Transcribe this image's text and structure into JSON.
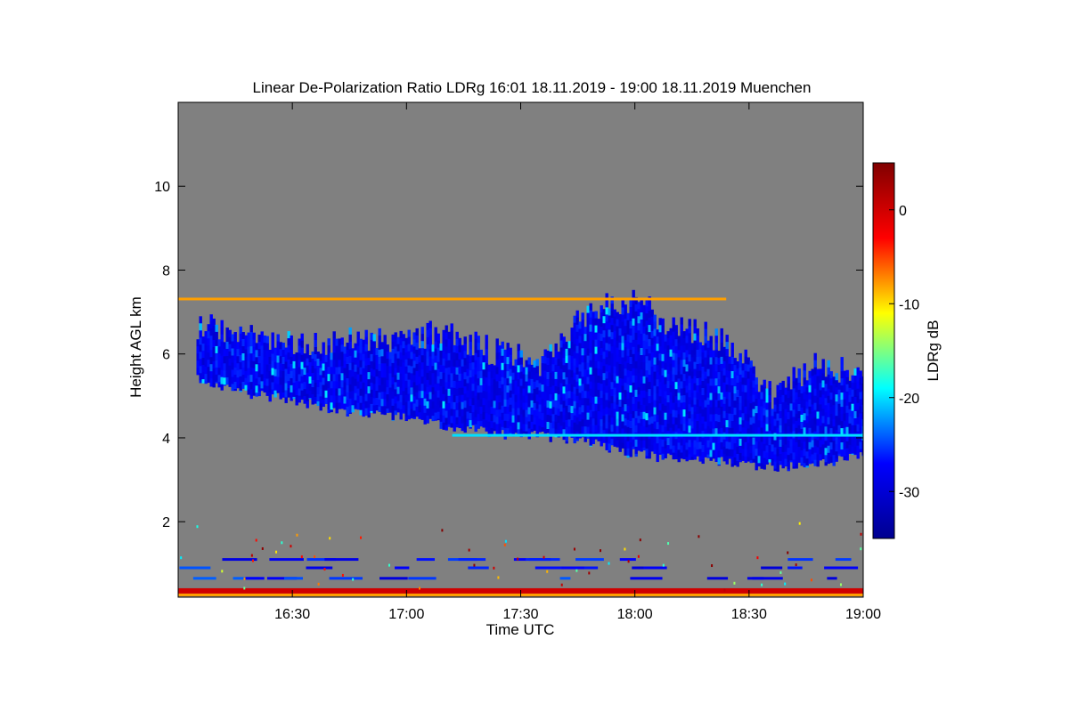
{
  "chart_data": {
    "type": "heatmap",
    "title": "Linear De-Polarization Ratio LDRg   16:01 18.11.2019 - 19:00 18.11.2019 Muenchen",
    "xlabel": "Time UTC",
    "ylabel": "Height AGL km",
    "colorbar_label": "LDRg dB",
    "xlim": [
      16.0,
      19.0
    ],
    "ylim": [
      0.2,
      12.0
    ],
    "x_ticks": [
      {
        "value": 16.5,
        "label": "16:30"
      },
      {
        "value": 17.0,
        "label": "17:00"
      },
      {
        "value": 17.5,
        "label": "17:30"
      },
      {
        "value": 18.0,
        "label": "18:00"
      },
      {
        "value": 18.5,
        "label": "18:30"
      },
      {
        "value": 19.0,
        "label": "19:00"
      }
    ],
    "y_ticks": [
      {
        "value": 2,
        "label": "2"
      },
      {
        "value": 4,
        "label": "4"
      },
      {
        "value": 6,
        "label": "6"
      },
      {
        "value": 8,
        "label": "8"
      },
      {
        "value": 10,
        "label": "10"
      }
    ],
    "clim": [
      -35,
      5
    ],
    "colorbar_ticks": [
      {
        "value": 0,
        "label": "0"
      },
      {
        "value": -10,
        "label": "-10"
      },
      {
        "value": -20,
        "label": "-20"
      },
      {
        "value": -30,
        "label": "-30"
      }
    ],
    "colormap": [
      "#00008f",
      "#0000ff",
      "#00ffff",
      "#ffff00",
      "#ff0000",
      "#800000"
    ],
    "background_color": "#808080",
    "cloud_layer": {
      "ldr_db_typical": -28,
      "time": [
        16.08,
        16.25,
        16.5,
        16.75,
        16.95,
        17.15,
        17.4,
        17.6,
        17.8,
        18.0,
        18.2,
        18.4,
        18.6,
        18.8,
        19.0
      ],
      "top_km": [
        6.7,
        6.4,
        6.3,
        6.3,
        6.3,
        6.5,
        6.0,
        5.8,
        7.1,
        7.2,
        6.6,
        6.3,
        5.0,
        5.8,
        5.5
      ],
      "base_km": [
        5.4,
        5.1,
        4.9,
        4.6,
        4.5,
        4.3,
        4.1,
        4.05,
        3.9,
        3.6,
        3.5,
        3.45,
        3.3,
        3.35,
        3.6
      ]
    },
    "artifact_lines": [
      {
        "height_km": 7.3,
        "ldr_db": -8,
        "t_start": 16.0,
        "t_end": 18.4
      },
      {
        "height_km": 4.05,
        "ldr_db": -20,
        "t_start": 17.2,
        "t_end": 19.0
      }
    ],
    "surface_clutter": [
      {
        "height_km": 0.35,
        "ldr_db": 0,
        "t_start": 16.0,
        "t_end": 19.0
      },
      {
        "height_km": 0.65,
        "ldr_db": -27,
        "t_start": 16.0,
        "t_end": 19.0
      },
      {
        "height_km": 0.9,
        "ldr_db": -27,
        "t_start": 16.0,
        "t_end": 19.0
      },
      {
        "height_km": 1.1,
        "ldr_db": -27,
        "t_start": 16.0,
        "t_end": 19.0
      }
    ],
    "grid": false,
    "colorbar_position": "right"
  }
}
